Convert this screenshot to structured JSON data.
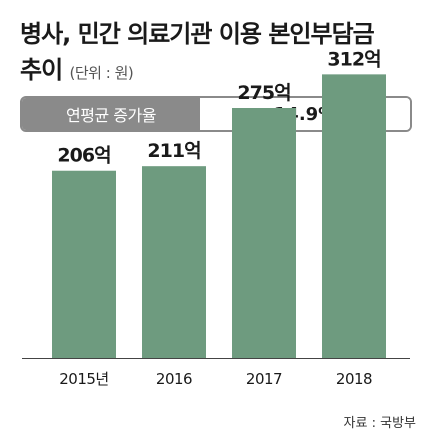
{
  "title_line1": "병사, 민간 의료기관 이용 본인부담금",
  "title_line2": "추이",
  "unit_label": "(단위 : 원)",
  "growth": {
    "label": "연평균 증가율",
    "value": "14.9%"
  },
  "source": "자료 : 국방부",
  "colors": {
    "bar": "#6e9b7f",
    "baseline": "#444444",
    "box": "#8a8a8a"
  },
  "chart_data": {
    "type": "bar",
    "categories": [
      "2015년",
      "2016",
      "2017",
      "2018"
    ],
    "values": [
      206,
      211,
      275,
      312
    ],
    "value_labels": [
      "206억",
      "211억",
      "275억",
      "312억"
    ],
    "title": "병사, 민간 의료기관 이용 본인부담금 추이",
    "xlabel": "",
    "ylabel": "",
    "ylim": [
      0,
      330
    ]
  }
}
